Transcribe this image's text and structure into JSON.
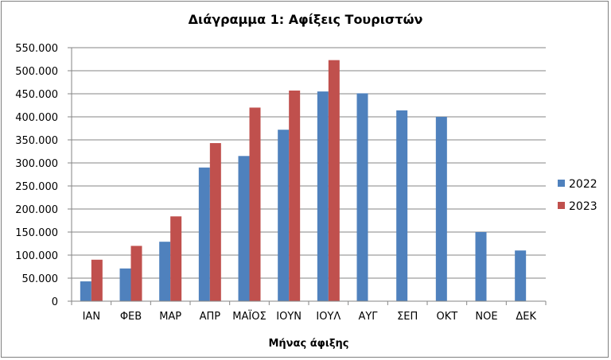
{
  "chart_data": {
    "type": "bar",
    "title": "Διάγραμμα 1: Αφίξεις Τουριστών",
    "xlabel": "Μήνας άφιξης",
    "ylabel": "",
    "ylim": [
      0,
      550000
    ],
    "yticks": [
      0,
      50000,
      100000,
      150000,
      200000,
      250000,
      300000,
      350000,
      400000,
      450000,
      500000,
      550000
    ],
    "ytick_labels": [
      "0",
      "50.000",
      "100.000",
      "150.000",
      "200.000",
      "250.000",
      "300.000",
      "350.000",
      "400.000",
      "450.000",
      "500.000",
      "550.000"
    ],
    "categories": [
      "ΙΑΝ",
      "ΦΕΒ",
      "ΜΑΡ",
      "ΑΠΡ",
      "ΜΑΪΟΣ",
      "ΙΟΥΝ",
      "ΙΟΥΛ",
      "ΑΥΓ",
      "ΣΕΠ",
      "ΟΚΤ",
      "ΝΟΕ",
      "ΔΕΚ"
    ],
    "series": [
      {
        "name": "2022",
        "color": "#4f81bd",
        "values": [
          43000,
          71000,
          129000,
          290000,
          315000,
          372000,
          455000,
          451000,
          414000,
          400000,
          150000,
          110000
        ]
      },
      {
        "name": "2023",
        "color": "#c0504d",
        "values": [
          90000,
          120000,
          184000,
          343000,
          420000,
          457000,
          523000,
          null,
          null,
          null,
          null,
          null
        ]
      }
    ],
    "grid": true,
    "legend": "right"
  }
}
